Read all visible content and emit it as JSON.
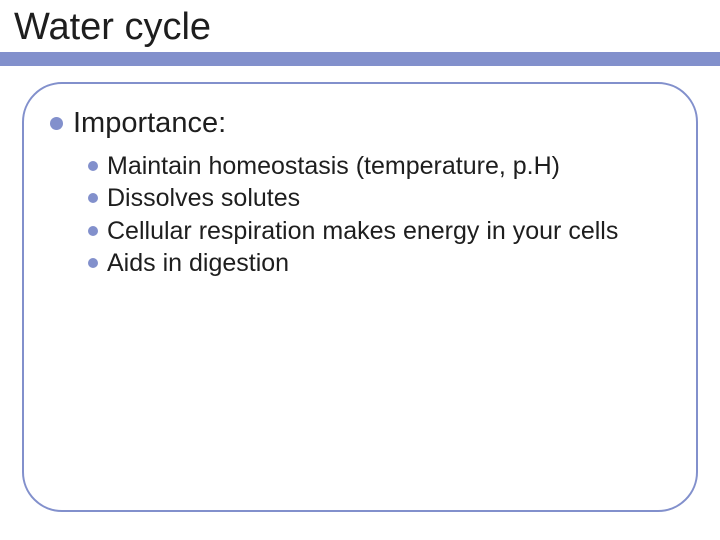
{
  "slide": {
    "title": "Water cycle",
    "title_fontsize": 38,
    "title_color": "#1e1e1e",
    "band_color": "#8290cc",
    "box_border_color": "#8290cc",
    "box_border_radius": 40,
    "background_color": "#ffffff",
    "bullet_color": "#8290cc",
    "level1": {
      "heading": "Importance:",
      "fontsize": 29,
      "items": [
        {
          "text": "Maintain homeostasis (temperature, p.H)"
        },
        {
          "text": "Dissolves solutes"
        },
        {
          "text": "Cellular respiration makes energy in your cells"
        },
        {
          "text": "Aids in digestion"
        }
      ],
      "item_fontsize": 25
    }
  }
}
